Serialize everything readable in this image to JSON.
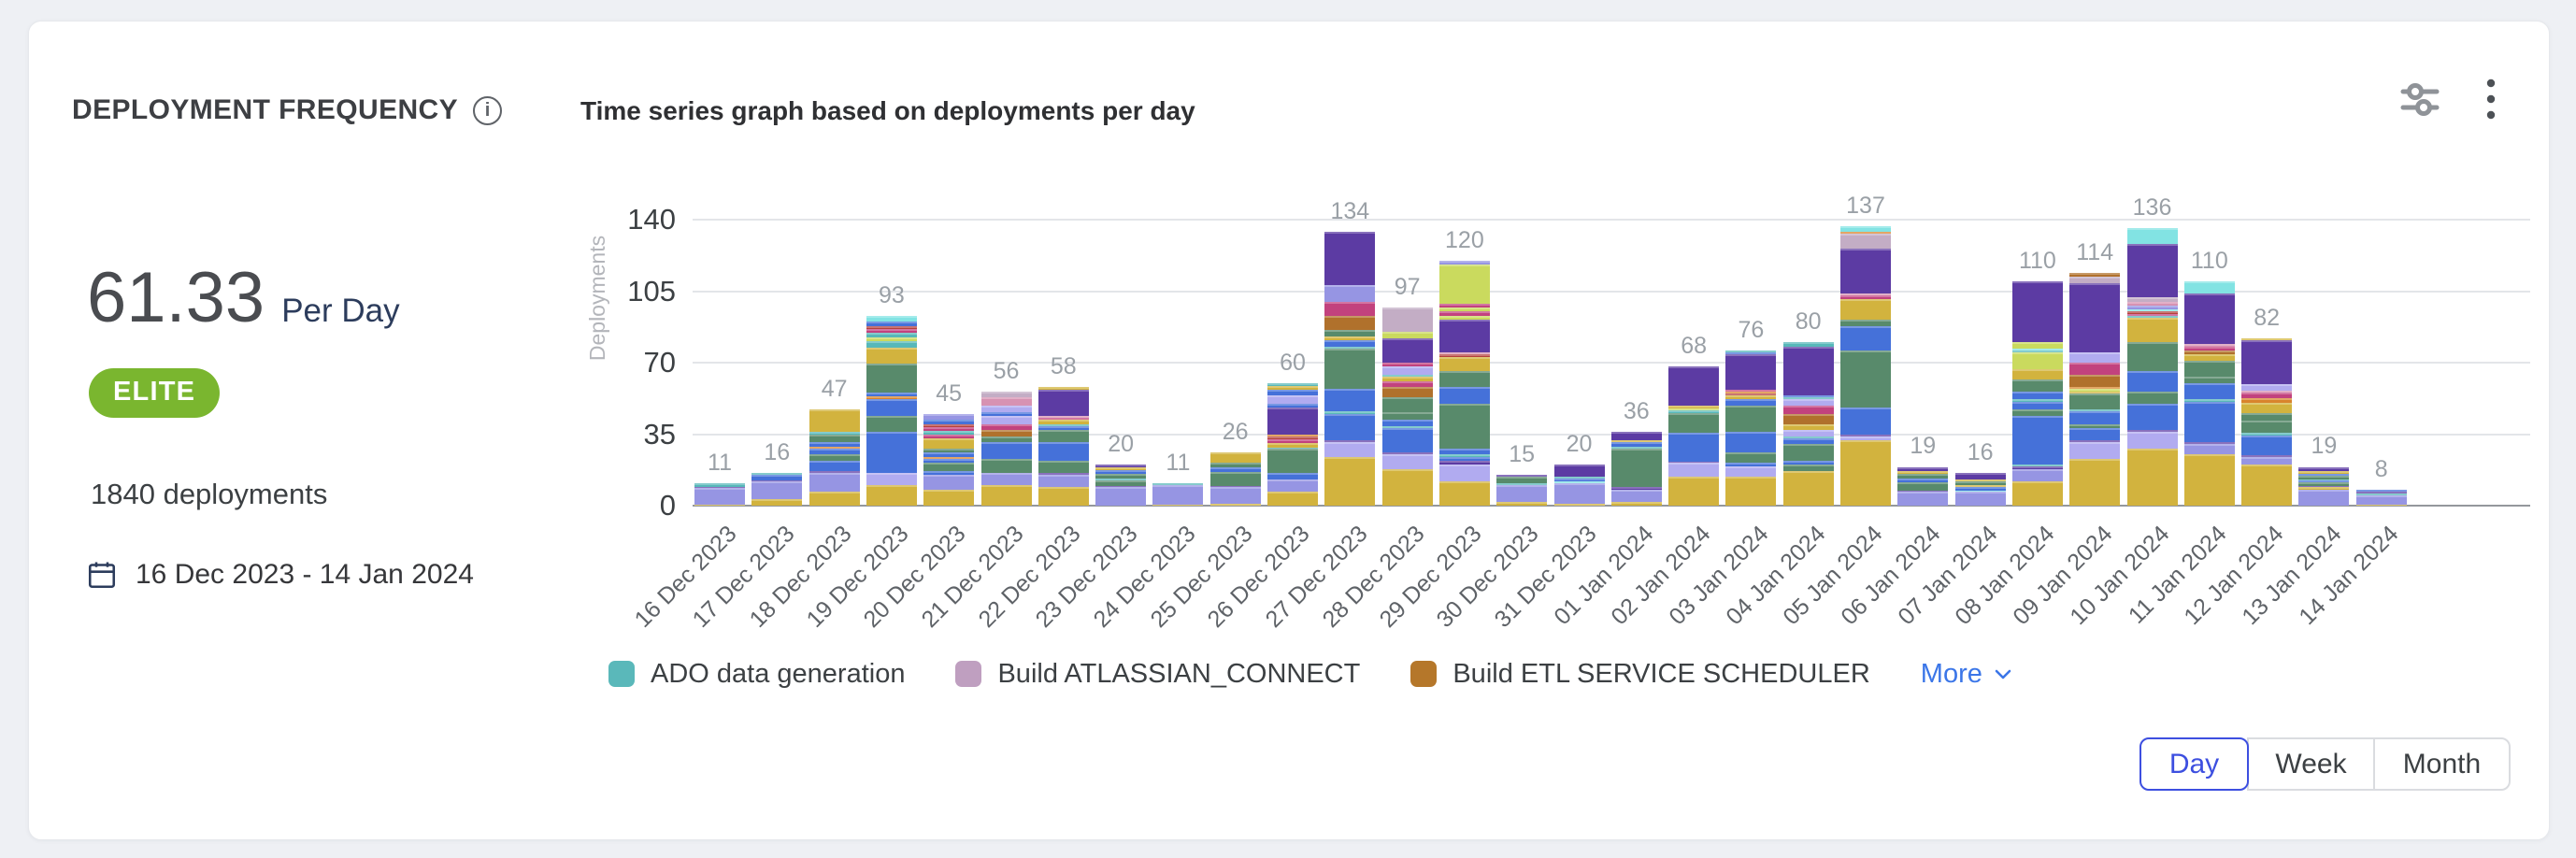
{
  "card": {
    "title": "DEPLOYMENT FREQUENCY",
    "metric": {
      "value": "61.33",
      "unit": "Per Day"
    },
    "badge": "ELITE",
    "total_deployments": "1840 deployments",
    "date_range": "16 Dec 2023 - 14 Jan 2024"
  },
  "icons": {
    "info_glyph": "i"
  },
  "legend": {
    "items": [
      {
        "label": "ADO data generation",
        "color": "#5ab8ba"
      },
      {
        "label": "Build ATLASSIAN_CONNECT",
        "color": "#bf9fc0"
      },
      {
        "label": "Build ETL SERVICE SCHEDULER",
        "color": "#b5772a"
      }
    ],
    "more_label": "More",
    "more_color": "#3b76e8"
  },
  "controls": {
    "granularity": [
      {
        "label": "Day",
        "active": true
      },
      {
        "label": "Week",
        "active": false
      },
      {
        "label": "Month",
        "active": false
      }
    ],
    "active_color": "#3d4fe0"
  },
  "chart_data": {
    "type": "bar",
    "stacked": true,
    "title": "Time series graph based on deployments per day",
    "xlabel": "",
    "ylabel": "Deployments",
    "ylim": [
      0,
      140
    ],
    "yticks": [
      0,
      35,
      70,
      105,
      140
    ],
    "grid": true,
    "legend_position": "bottom",
    "value_labels": true,
    "visible_series_in_legend": [
      "ADO data generation",
      "Build ATLASSIAN_CONNECT",
      "Build ETL SERVICE SCHEDULER"
    ],
    "categories": [
      "16 Dec 2023",
      "17 Dec 2023",
      "18 Dec 2023",
      "19 Dec 2023",
      "20 Dec 2023",
      "21 Dec 2023",
      "22 Dec 2023",
      "23 Dec 2023",
      "24 Dec 2023",
      "25 Dec 2023",
      "26 Dec 2023",
      "27 Dec 2023",
      "28 Dec 2023",
      "29 Dec 2023",
      "30 Dec 2023",
      "31 Dec 2023",
      "01 Jan 2024",
      "02 Jan 2024",
      "03 Jan 2024",
      "04 Jan 2024",
      "05 Jan 2024",
      "06 Jan 2024",
      "07 Jan 2024",
      "08 Jan 2024",
      "09 Jan 2024",
      "10 Jan 2024",
      "11 Jan 2024",
      "12 Jan 2024",
      "13 Jan 2024",
      "14 Jan 2024"
    ],
    "values": [
      11,
      16,
      47,
      93,
      45,
      56,
      58,
      20,
      11,
      26,
      60,
      134,
      97,
      120,
      15,
      20,
      36,
      68,
      76,
      80,
      137,
      19,
      16,
      110,
      114,
      136,
      110,
      82,
      19,
      8
    ],
    "palette": {
      "Y": "#d2b33e",
      "P": "#9695e3",
      "L": "#b1abf0",
      "B": "#4571d9",
      "G": "#588a6b",
      "DP": "#5c3ba3",
      "T": "#57b8b9",
      "C": "#82e3e3",
      "LM": "#cada5e",
      "M": "#c2427e",
      "R": "#b5413c",
      "O": "#d9842c",
      "BR": "#b0712c",
      "MV": "#c3adc5",
      "PK": "#d792b2"
    },
    "stack_segments": [
      [
        [
          "Y",
          0.5
        ],
        [
          "P",
          8
        ],
        [
          "DP",
          0.5
        ],
        [
          "T",
          2
        ]
      ],
      [
        [
          "Y",
          3
        ],
        [
          "P",
          9
        ],
        [
          "DP",
          0.5
        ],
        [
          "B",
          2.5
        ],
        [
          "T",
          1
        ]
      ],
      [
        [
          "Y",
          7
        ],
        [
          "P",
          9
        ],
        [
          "DP",
          1
        ],
        [
          "B",
          5
        ],
        [
          "G",
          3
        ],
        [
          "B",
          3
        ],
        [
          "O",
          1
        ],
        [
          "B",
          2
        ],
        [
          "G",
          4
        ],
        [
          "T",
          1
        ],
        [
          "Y",
          11
        ]
      ],
      [
        [
          "Y",
          10
        ],
        [
          "L",
          6
        ],
        [
          "B",
          20
        ],
        [
          "G",
          8
        ],
        [
          "B",
          8
        ],
        [
          "O",
          1.5
        ],
        [
          "B",
          2
        ],
        [
          "G",
          14
        ],
        [
          "Y",
          8
        ],
        [
          "T",
          3
        ],
        [
          "LM",
          2
        ],
        [
          "T",
          2
        ],
        [
          "M",
          2
        ],
        [
          "R",
          1.5
        ],
        [
          "B",
          2
        ],
        [
          "C",
          3
        ]
      ],
      [
        [
          "Y",
          8
        ],
        [
          "P",
          7
        ],
        [
          "B",
          2
        ],
        [
          "G",
          4
        ],
        [
          "B",
          2
        ],
        [
          "O",
          1
        ],
        [
          "B",
          2
        ],
        [
          "G",
          2
        ],
        [
          "Y",
          5
        ],
        [
          "M",
          2
        ],
        [
          "T",
          1.5
        ],
        [
          "M",
          2
        ],
        [
          "R",
          1.5
        ],
        [
          "B",
          2
        ],
        [
          "P",
          3
        ]
      ],
      [
        [
          "Y",
          10
        ],
        [
          "P",
          6
        ],
        [
          "G",
          7
        ],
        [
          "B",
          8
        ],
        [
          "G",
          3
        ],
        [
          "BR",
          3
        ],
        [
          "M",
          3
        ],
        [
          "L",
          4
        ],
        [
          "B",
          2
        ],
        [
          "L",
          3
        ],
        [
          "PK",
          4
        ],
        [
          "MV",
          3
        ]
      ],
      [
        [
          "Y",
          9
        ],
        [
          "P",
          6
        ],
        [
          "DP",
          1
        ],
        [
          "G",
          6
        ],
        [
          "B",
          9
        ],
        [
          "G",
          6
        ],
        [
          "B",
          2
        ],
        [
          "T",
          1
        ],
        [
          "Y",
          2
        ],
        [
          "M",
          1
        ],
        [
          "PK",
          1
        ],
        [
          "DP",
          13
        ],
        [
          "Y",
          1
        ]
      ],
      [
        [
          "P",
          9
        ],
        [
          "DP",
          0.5
        ],
        [
          "G",
          3
        ],
        [
          "T",
          1
        ],
        [
          "G",
          2
        ],
        [
          "B",
          2
        ],
        [
          "Y",
          1.5
        ],
        [
          "DP",
          1
        ]
      ],
      [
        [
          "Y",
          0.5
        ],
        [
          "P",
          9.5
        ],
        [
          "T",
          1
        ]
      ],
      [
        [
          "Y",
          1
        ],
        [
          "P",
          8
        ],
        [
          "DP",
          0.5
        ],
        [
          "G",
          7
        ],
        [
          "B",
          2.5
        ],
        [
          "G",
          2
        ],
        [
          "Y",
          5
        ]
      ],
      [
        [
          "Y",
          7
        ],
        [
          "P",
          6
        ],
        [
          "B",
          3
        ],
        [
          "G",
          12
        ],
        [
          "T",
          0.5
        ],
        [
          "Y",
          2
        ],
        [
          "M",
          2
        ],
        [
          "R",
          1.5
        ],
        [
          "O",
          1
        ],
        [
          "DP",
          13
        ],
        [
          "B",
          2
        ],
        [
          "L",
          4
        ],
        [
          "B",
          3
        ],
        [
          "Y",
          1.5
        ],
        [
          "T",
          1.5
        ]
      ],
      [
        [
          "Y",
          24
        ],
        [
          "L",
          7
        ],
        [
          "DP",
          1
        ],
        [
          "B",
          13
        ],
        [
          "T",
          1
        ],
        [
          "B",
          11
        ],
        [
          "G",
          20
        ],
        [
          "T",
          1
        ],
        [
          "B",
          3
        ],
        [
          "Y",
          2
        ],
        [
          "G",
          3
        ],
        [
          "BR",
          7
        ],
        [
          "M",
          7
        ],
        [
          "P",
          8
        ],
        [
          "DP",
          26
        ]
      ],
      [
        [
          "Y",
          18
        ],
        [
          "L",
          7
        ],
        [
          "DP",
          1
        ],
        [
          "B",
          12
        ],
        [
          "T",
          1
        ],
        [
          "B",
          3
        ],
        [
          "G",
          4
        ],
        [
          "G",
          7
        ],
        [
          "BR",
          5
        ],
        [
          "M",
          3
        ],
        [
          "Y",
          2
        ],
        [
          "T",
          1
        ],
        [
          "L",
          4
        ],
        [
          "M",
          2
        ],
        [
          "DP",
          12
        ],
        [
          "LM",
          3
        ],
        [
          "MV",
          12
        ]
      ],
      [
        [
          "Y",
          12
        ],
        [
          "L",
          8
        ],
        [
          "DP",
          2
        ],
        [
          "B",
          2
        ],
        [
          "T",
          1
        ],
        [
          "B",
          3
        ],
        [
          "G",
          22
        ],
        [
          "B",
          8
        ],
        [
          "G",
          8
        ],
        [
          "Y",
          7
        ],
        [
          "R",
          1
        ],
        [
          "PK",
          1
        ],
        [
          "DP",
          16
        ],
        [
          "LM",
          2
        ],
        [
          "M",
          2
        ],
        [
          "LM",
          2
        ],
        [
          "M",
          2
        ],
        [
          "LM",
          19
        ],
        [
          "P",
          2
        ]
      ],
      [
        [
          "Y",
          2
        ],
        [
          "P",
          8
        ],
        [
          "T",
          1
        ],
        [
          "G",
          3
        ],
        [
          "DP",
          1
        ]
      ],
      [
        [
          "Y",
          1
        ],
        [
          "P",
          10
        ],
        [
          "C",
          1
        ],
        [
          "B",
          1.5
        ],
        [
          "T",
          0.5
        ],
        [
          "DP",
          6
        ]
      ],
      [
        [
          "Y",
          2
        ],
        [
          "P",
          6
        ],
        [
          "DP",
          1
        ],
        [
          "G",
          19
        ],
        [
          "T",
          1
        ],
        [
          "B",
          2
        ],
        [
          "Y",
          1
        ],
        [
          "DP",
          4
        ]
      ],
      [
        [
          "Y",
          14
        ],
        [
          "L",
          7
        ],
        [
          "DP",
          0.5
        ],
        [
          "B",
          14
        ],
        [
          "G",
          10
        ],
        [
          "T",
          1
        ],
        [
          "LM",
          1
        ],
        [
          "Y",
          1.5
        ],
        [
          "DP",
          19
        ]
      ],
      [
        [
          "Y",
          14
        ],
        [
          "L",
          5
        ],
        [
          "B",
          2
        ],
        [
          "G",
          5
        ],
        [
          "B",
          10
        ],
        [
          "G",
          13
        ],
        [
          "B",
          3
        ],
        [
          "Y",
          2
        ],
        [
          "R",
          1
        ],
        [
          "O",
          1
        ],
        [
          "M",
          1
        ],
        [
          "DP",
          17
        ],
        [
          "B",
          1
        ],
        [
          "T",
          1
        ]
      ],
      [
        [
          "Y",
          17
        ],
        [
          "G",
          3
        ],
        [
          "B",
          2
        ],
        [
          "G",
          8
        ],
        [
          "B",
          3
        ],
        [
          "T",
          1
        ],
        [
          "L",
          3
        ],
        [
          "Y",
          3
        ],
        [
          "BR",
          5
        ],
        [
          "M",
          4
        ],
        [
          "L",
          3
        ],
        [
          "T",
          1
        ],
        [
          "B",
          1
        ],
        [
          "DP",
          24
        ],
        [
          "T",
          2
        ]
      ],
      [
        [
          "Y",
          32
        ],
        [
          "L",
          2
        ],
        [
          "DP",
          1
        ],
        [
          "B",
          13
        ],
        [
          "G",
          28
        ],
        [
          "B",
          12
        ],
        [
          "G",
          3
        ],
        [
          "Y",
          10
        ],
        [
          "M",
          2
        ],
        [
          "PK",
          1
        ],
        [
          "DP",
          22
        ],
        [
          "MV",
          7
        ],
        [
          "O",
          1
        ],
        [
          "C",
          3
        ]
      ],
      [
        [
          "P",
          7
        ],
        [
          "DP",
          0.5
        ],
        [
          "G",
          4
        ],
        [
          "B",
          2
        ],
        [
          "G",
          2
        ],
        [
          "Y",
          1.5
        ],
        [
          "DP",
          2
        ]
      ],
      [
        [
          "P",
          7
        ],
        [
          "C",
          0.5
        ],
        [
          "B",
          1.5
        ],
        [
          "Y",
          1
        ],
        [
          "G",
          2
        ],
        [
          "Y",
          1
        ],
        [
          "DP",
          3
        ]
      ],
      [
        [
          "Y",
          12
        ],
        [
          "P",
          6
        ],
        [
          "DP",
          1
        ],
        [
          "T",
          1
        ],
        [
          "B",
          24
        ],
        [
          "G",
          3
        ],
        [
          "B",
          4
        ],
        [
          "T",
          1
        ],
        [
          "B",
          4
        ],
        [
          "G",
          6
        ],
        [
          "Y",
          5
        ],
        [
          "LM",
          8
        ],
        [
          "T",
          1
        ],
        [
          "C",
          1
        ],
        [
          "LM",
          3
        ],
        [
          "DP",
          30
        ]
      ],
      [
        [
          "Y",
          23
        ],
        [
          "L",
          8
        ],
        [
          "DP",
          1
        ],
        [
          "B",
          6
        ],
        [
          "G",
          2
        ],
        [
          "B",
          6
        ],
        [
          "T",
          1
        ],
        [
          "G",
          8
        ],
        [
          "Y",
          1
        ],
        [
          "LM",
          1
        ],
        [
          "O",
          1
        ],
        [
          "BR",
          6
        ],
        [
          "M",
          6
        ],
        [
          "L",
          5
        ],
        [
          "DP",
          34
        ],
        [
          "MV",
          3
        ],
        [
          "BR",
          2
        ]
      ],
      [
        [
          "Y",
          28
        ],
        [
          "L",
          8
        ],
        [
          "DP",
          1
        ],
        [
          "B",
          13
        ],
        [
          "G",
          6
        ],
        [
          "B",
          10
        ],
        [
          "G",
          14
        ],
        [
          "Y",
          12
        ],
        [
          "T",
          1
        ],
        [
          "M",
          1
        ],
        [
          "R",
          1
        ],
        [
          "C",
          1
        ],
        [
          "P",
          2
        ],
        [
          "PK",
          2
        ],
        [
          "MV",
          2
        ],
        [
          "DP",
          26
        ],
        [
          "C",
          8
        ]
      ],
      [
        [
          "Y",
          25
        ],
        [
          "P",
          5
        ],
        [
          "DP",
          1
        ],
        [
          "B",
          20
        ],
        [
          "T",
          1
        ],
        [
          "B",
          8
        ],
        [
          "G",
          3
        ],
        [
          "G",
          8
        ],
        [
          "Y",
          3
        ],
        [
          "BR",
          2
        ],
        [
          "M",
          2
        ],
        [
          "PK",
          1
        ],
        [
          "DP",
          25
        ],
        [
          "C",
          6
        ]
      ],
      [
        [
          "Y",
          20
        ],
        [
          "P",
          4
        ],
        [
          "DP",
          0.5
        ],
        [
          "B",
          10
        ],
        [
          "T",
          1
        ],
        [
          "G",
          6
        ],
        [
          "G",
          4
        ],
        [
          "Y",
          5
        ],
        [
          "O",
          2
        ],
        [
          "M",
          3
        ],
        [
          "PK",
          1
        ],
        [
          "L",
          3
        ],
        [
          "DP",
          21.5
        ],
        [
          "Y",
          1
        ]
      ],
      [
        [
          "P",
          8
        ],
        [
          "Y",
          1
        ],
        [
          "DP",
          0.5
        ],
        [
          "G",
          2
        ],
        [
          "B",
          1
        ],
        [
          "T",
          0.5
        ],
        [
          "G",
          1.5
        ],
        [
          "B",
          1
        ],
        [
          "Y",
          1.5
        ],
        [
          "DP",
          2
        ]
      ],
      [
        [
          "Y",
          0.5
        ],
        [
          "P",
          4.5
        ],
        [
          "T",
          1
        ],
        [
          "DP",
          1
        ],
        [
          "B",
          1
        ]
      ]
    ]
  }
}
